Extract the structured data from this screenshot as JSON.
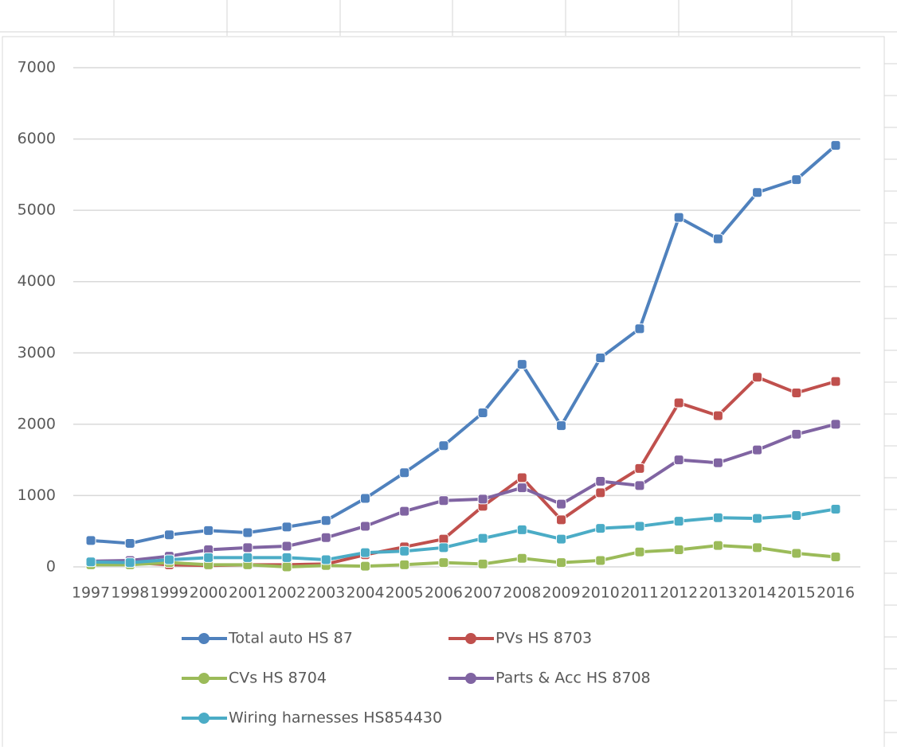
{
  "chart_data": {
    "type": "line",
    "categories": [
      "1997",
      "1998",
      "1999",
      "2000",
      "2001",
      "2002",
      "2003",
      "2004",
      "2005",
      "2006",
      "2007",
      "2008",
      "2009",
      "2010",
      "2011",
      "2012",
      "2013",
      "2014",
      "2015",
      "2016"
    ],
    "series": [
      {
        "name": "Total auto HS 87",
        "color": "#4f81bd",
        "values": [
          370,
          330,
          450,
          510,
          480,
          560,
          650,
          960,
          1320,
          1700,
          2160,
          2840,
          1980,
          2930,
          3340,
          4900,
          4600,
          5250,
          5430,
          5910
        ]
      },
      {
        "name": "PVs HS 8703",
        "color": "#c0504d",
        "values": [
          80,
          60,
          30,
          20,
          30,
          30,
          40,
          170,
          280,
          390,
          850,
          1250,
          660,
          1040,
          1380,
          2300,
          2120,
          2660,
          2440,
          2600
        ]
      },
      {
        "name": "CVs HS 8704",
        "color": "#9bbb59",
        "values": [
          30,
          30,
          60,
          30,
          30,
          0,
          20,
          10,
          30,
          60,
          40,
          120,
          60,
          90,
          210,
          240,
          300,
          270,
          190,
          140
        ]
      },
      {
        "name": "Parts & Acc HS 8708",
        "color": "#8064a2",
        "values": [
          80,
          90,
          150,
          240,
          270,
          290,
          410,
          570,
          780,
          930,
          950,
          1110,
          880,
          1200,
          1140,
          1500,
          1460,
          1640,
          1860,
          2000
        ]
      },
      {
        "name": "Wiring harnesses HS854430",
        "color": "#4bacc6",
        "values": [
          70,
          60,
          100,
          130,
          130,
          130,
          100,
          200,
          220,
          270,
          400,
          520,
          390,
          540,
          570,
          640,
          690,
          680,
          720,
          810
        ]
      }
    ],
    "ylim": [
      0,
      7000
    ],
    "yticks": [
      0,
      1000,
      2000,
      3000,
      4000,
      5000,
      6000,
      7000
    ],
    "grid": true
  }
}
